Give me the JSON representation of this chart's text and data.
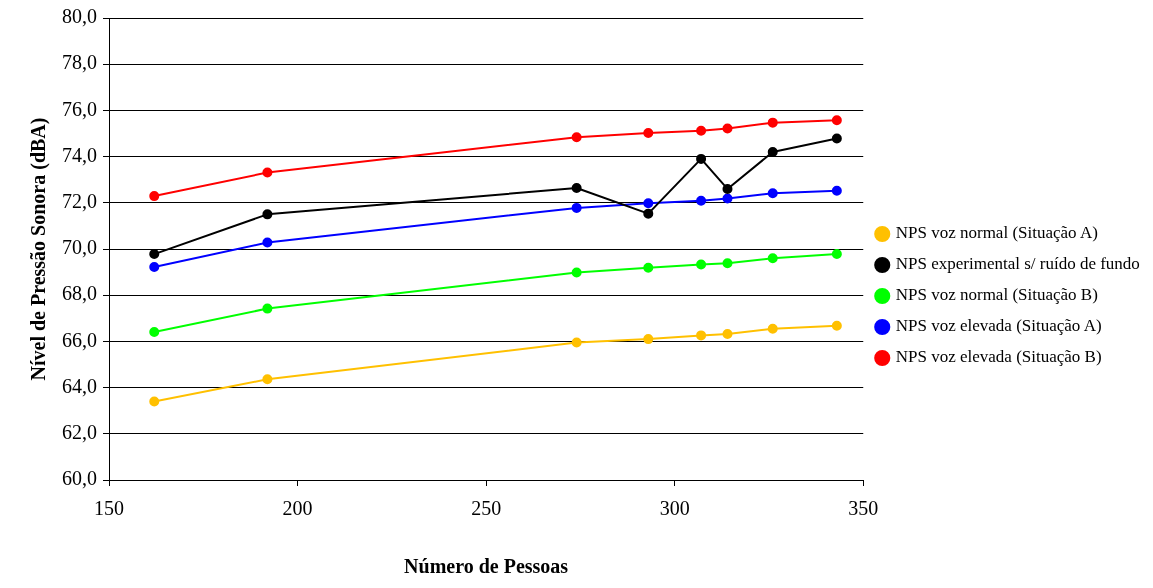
{
  "chart_data": {
    "type": "line",
    "xlabel": "Número de Pessoas",
    "ylabel": "Nível de Pressão Sonora (dBA)",
    "x": [
      162,
      192,
      274,
      293,
      307,
      314,
      326,
      343
    ],
    "series": [
      {
        "name": "NPS voz normal (Situação A)",
        "color": "#ffc000",
        "values": [
          63.4,
          64.36,
          65.95,
          66.1,
          66.26,
          66.32,
          66.55,
          66.68
        ]
      },
      {
        "name": "NPS experimental s/ ruído de fundo",
        "color": "#000000",
        "values": [
          69.78,
          71.5,
          72.64,
          71.53,
          73.9,
          72.6,
          74.2,
          74.78
        ]
      },
      {
        "name": "NPS voz normal (Situação B)",
        "color": "#00ff00",
        "values": [
          66.41,
          67.42,
          68.98,
          69.19,
          69.33,
          69.38,
          69.6,
          69.78
        ]
      },
      {
        "name": "NPS voz elevada (Situação A)",
        "color": "#0000ff",
        "values": [
          69.22,
          70.28,
          71.78,
          71.98,
          72.09,
          72.19,
          72.41,
          72.52
        ]
      },
      {
        "name": "NPS voz elevada (Situação B)",
        "color": "#ff0000",
        "values": [
          72.29,
          73.31,
          74.84,
          75.02,
          75.12,
          75.22,
          75.47,
          75.57
        ]
      }
    ],
    "xlim": [
      150,
      350
    ],
    "xticks": [
      150,
      200,
      250,
      300,
      350
    ],
    "ylim": [
      60,
      80
    ],
    "yticks": [
      {
        "value": 60,
        "label": "60,0"
      },
      {
        "value": 62,
        "label": "62,0"
      },
      {
        "value": 64,
        "label": "64,0"
      },
      {
        "value": 66,
        "label": "66,0"
      },
      {
        "value": 68,
        "label": "68,0"
      },
      {
        "value": 70,
        "label": "70,0"
      },
      {
        "value": 72,
        "label": "72,0"
      },
      {
        "value": 74,
        "label": "74,0"
      },
      {
        "value": 76,
        "label": "76,0"
      },
      {
        "value": 78,
        "label": "78,0"
      },
      {
        "value": 80,
        "label": "80,0"
      }
    ],
    "grid": "y",
    "legend": "right",
    "marker": "circle",
    "line_style": "solid"
  }
}
